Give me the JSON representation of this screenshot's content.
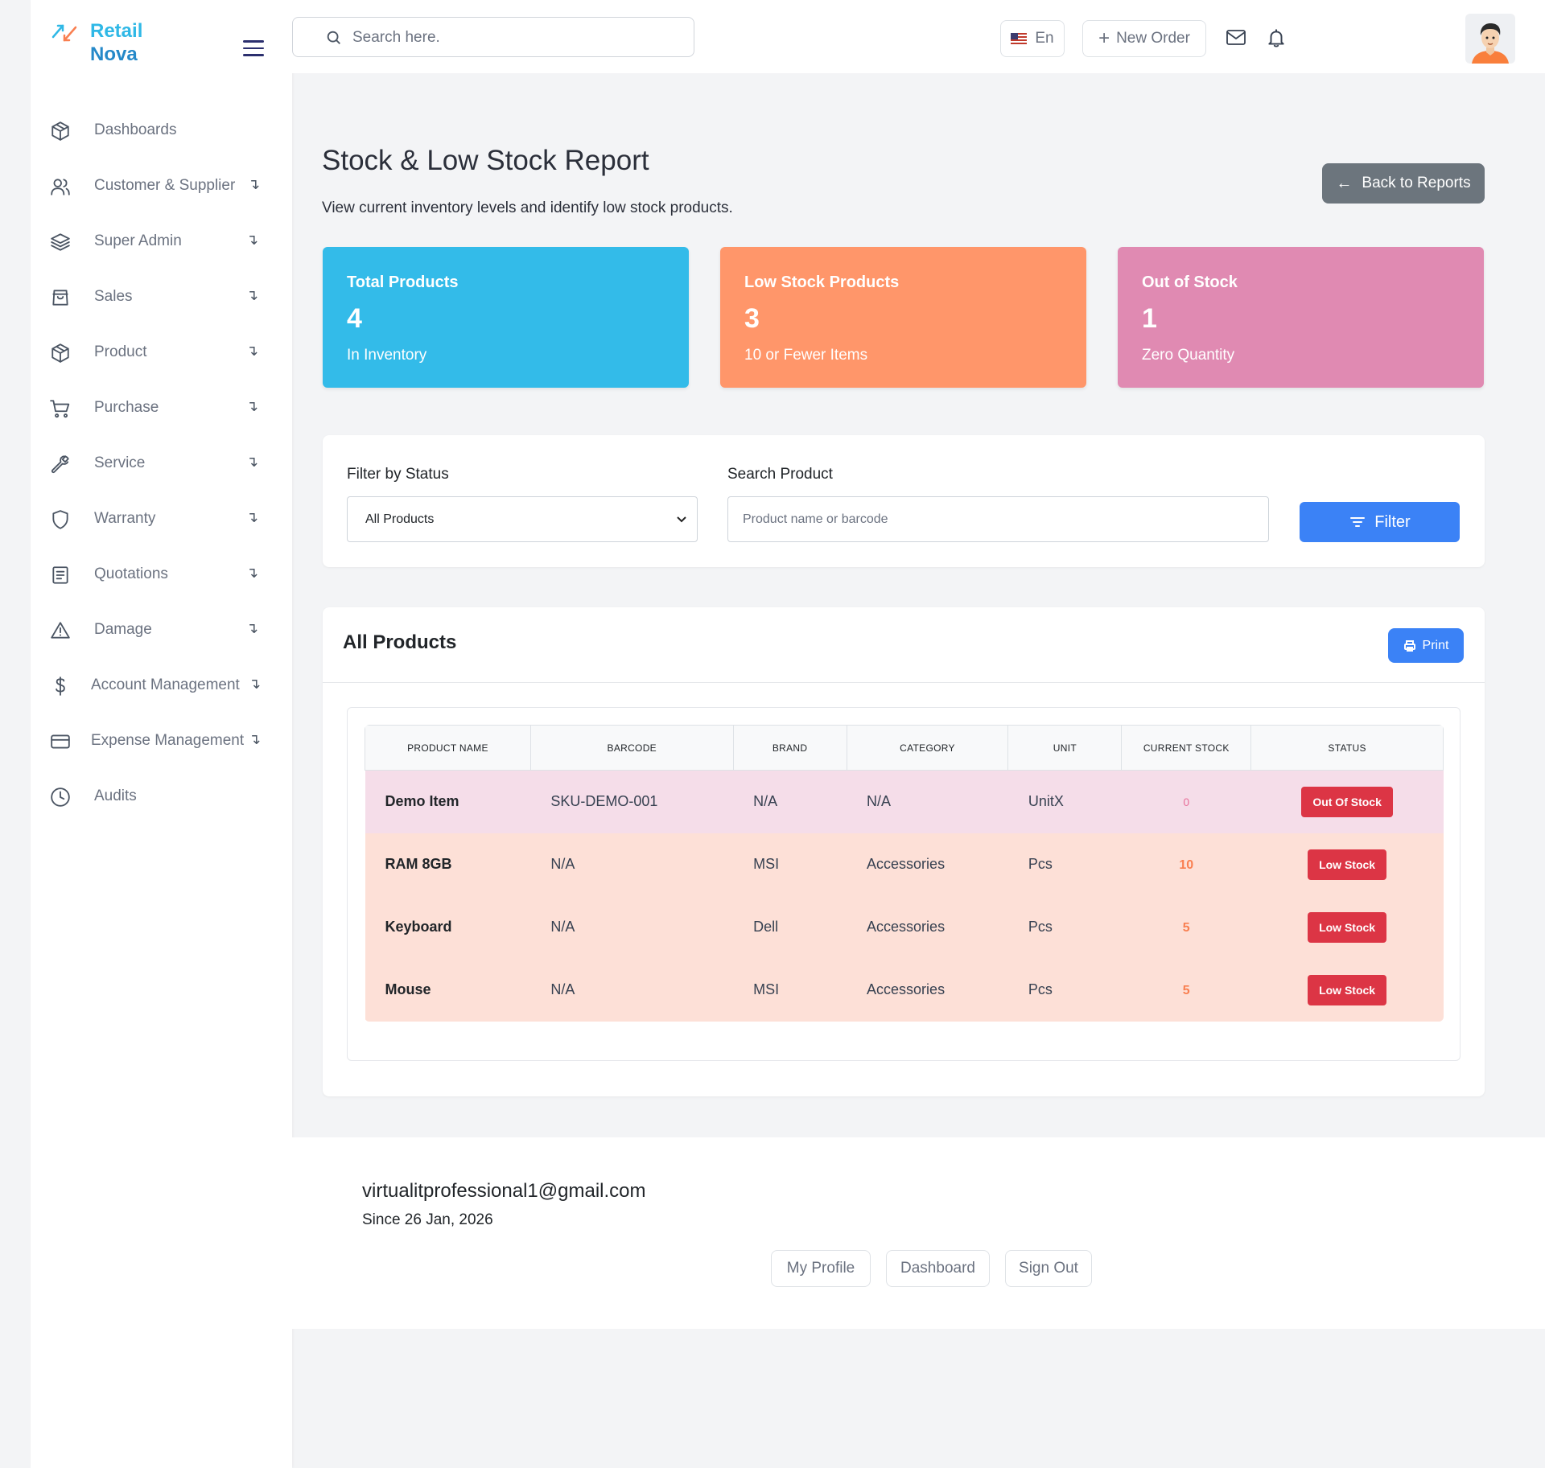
{
  "brand": {
    "line1": "Retail",
    "line2": "Nova"
  },
  "search": {
    "placeholder": "Search here."
  },
  "header": {
    "language": "En",
    "new_order": "New Order"
  },
  "sidebar": {
    "items": [
      {
        "label": "Dashboards",
        "icon": "box-icon",
        "expandable": false
      },
      {
        "label": "Customer & Supplier",
        "icon": "users-icon",
        "expandable": true
      },
      {
        "label": "Super Admin",
        "icon": "layers-icon",
        "expandable": true
      },
      {
        "label": "Sales",
        "icon": "bag-icon",
        "expandable": true
      },
      {
        "label": "Product",
        "icon": "box-icon",
        "expandable": true
      },
      {
        "label": "Purchase",
        "icon": "cart-icon",
        "expandable": true
      },
      {
        "label": "Service",
        "icon": "wrench-icon",
        "expandable": true
      },
      {
        "label": "Warranty",
        "icon": "shield-icon",
        "expandable": true
      },
      {
        "label": "Quotations",
        "icon": "document-icon",
        "expandable": true
      },
      {
        "label": "Damage",
        "icon": "warning-icon",
        "expandable": true
      },
      {
        "label": "Account Management",
        "icon": "dollar-icon",
        "expandable": true
      },
      {
        "label": "Expense Management",
        "icon": "card-icon",
        "expandable": true
      },
      {
        "label": "Audits",
        "icon": "clock-icon",
        "expandable": false
      }
    ],
    "arrow": "↴"
  },
  "page": {
    "title": "Stock & Low Stock Report",
    "subtitle": "View current inventory levels and identify low stock products.",
    "back_button": "Back to Reports"
  },
  "stats": {
    "total": {
      "title": "Total Products",
      "value": "4",
      "sub": "In Inventory",
      "color": "#33bbe9"
    },
    "low": {
      "title": "Low Stock Products",
      "value": "3",
      "sub": "10 or Fewer Items",
      "color": "#ff966a"
    },
    "out": {
      "title": "Out of Stock",
      "value": "1",
      "sub": "Zero Quantity",
      "color": "#e08ab2"
    }
  },
  "filter": {
    "status_label": "Filter by Status",
    "status_value": "All Products",
    "search_label": "Search Product",
    "search_placeholder": "Product name or barcode",
    "button": "Filter"
  },
  "table_section": {
    "title": "All Products",
    "print": "Print",
    "columns": [
      "Product Name",
      "Barcode",
      "Brand",
      "Category",
      "Unit",
      "Current Stock",
      "Status"
    ],
    "rows": [
      {
        "name": "Demo Item",
        "barcode": "SKU-DEMO-001",
        "brand": "N/A",
        "category": "N/A",
        "unit": "UnitX",
        "stock": "0",
        "status": "Out Of Stock"
      },
      {
        "name": "RAM 8GB",
        "barcode": "N/A",
        "brand": "MSI",
        "category": "Accessories",
        "unit": "Pcs",
        "stock": "10",
        "status": "Low Stock"
      },
      {
        "name": "Keyboard",
        "barcode": "N/A",
        "brand": "Dell",
        "category": "Accessories",
        "unit": "Pcs",
        "stock": "5",
        "status": "Low Stock"
      },
      {
        "name": "Mouse",
        "barcode": "N/A",
        "brand": "MSI",
        "category": "Accessories",
        "unit": "Pcs",
        "stock": "5",
        "status": "Low Stock"
      }
    ]
  },
  "footer": {
    "email": "virtualitprofessional1@gmail.com",
    "since": "Since 26 Jan, 2026",
    "buttons": [
      "My Profile",
      "Dashboard",
      "Sign Out"
    ]
  },
  "colors": {
    "accent": "#3b82f6",
    "danger": "#dc3545",
    "back_button": "#6c757d"
  }
}
